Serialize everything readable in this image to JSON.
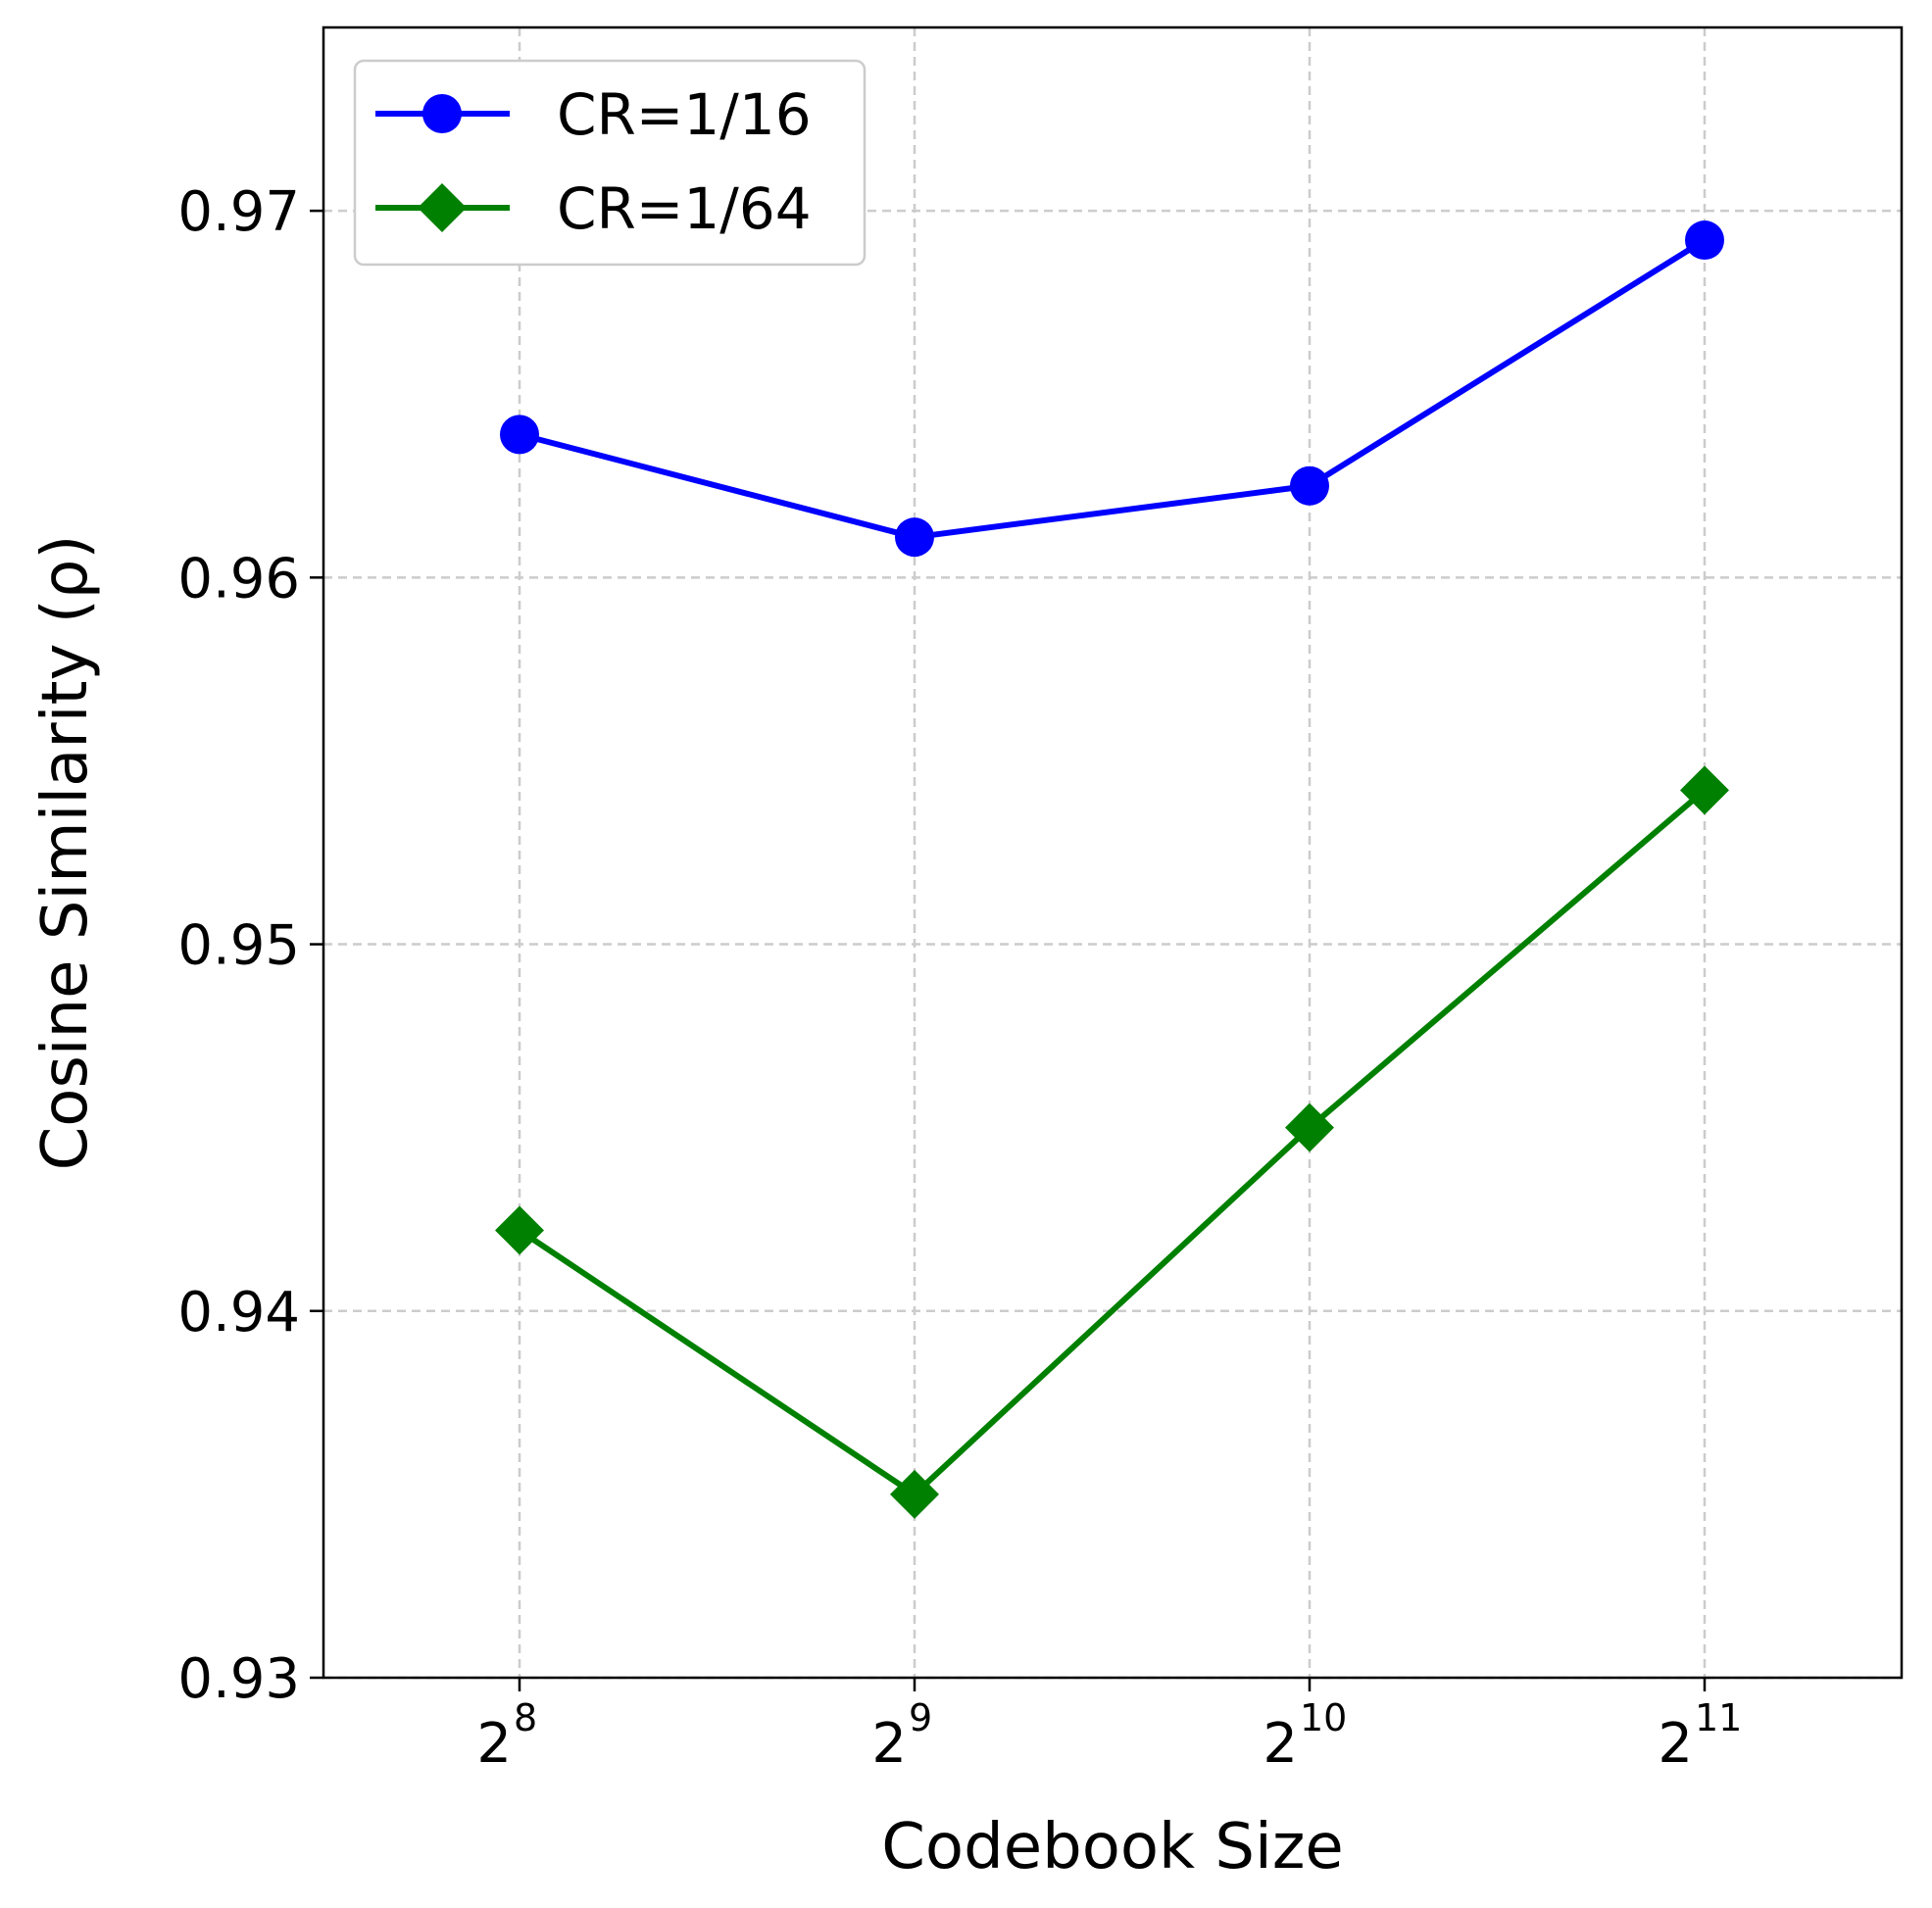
{
  "chart_data": {
    "type": "line",
    "title": "",
    "xlabel": "Codebook Size",
    "ylabel": "Cosine Similarity (ρ)",
    "x_ticks": [
      {
        "base": "2",
        "exp": "8"
      },
      {
        "base": "2",
        "exp": "9"
      },
      {
        "base": "2",
        "exp": "10"
      },
      {
        "base": "2",
        "exp": "11"
      }
    ],
    "y_ticks": [
      "0.93",
      "0.94",
      "0.95",
      "0.96",
      "0.97"
    ],
    "ylim": [
      0.93,
      0.975
    ],
    "grid": true,
    "legend_position": "top-left",
    "series": [
      {
        "name": "CR=1/16",
        "color": "#0000ff",
        "marker": "circle",
        "values": [
          0.9639,
          0.9611,
          0.9625,
          0.9692
        ]
      },
      {
        "name": "CR=1/64",
        "color": "#008000",
        "marker": "diamond",
        "values": [
          0.9422,
          0.935,
          0.945,
          0.9542
        ]
      }
    ]
  }
}
